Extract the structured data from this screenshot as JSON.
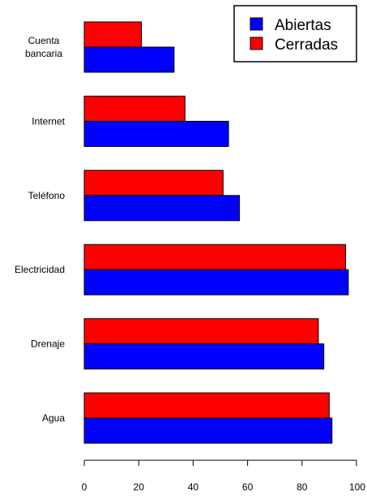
{
  "chart_data": {
    "type": "bar",
    "orientation": "horizontal",
    "categories": [
      "Cuenta\nbancaria",
      "Internet",
      "Teléfono",
      "Electricidad",
      "Drenaje",
      "Agua"
    ],
    "series": [
      {
        "name": "Abiertas",
        "color": "#0000ff",
        "values": [
          33,
          53,
          57,
          97,
          88,
          91
        ]
      },
      {
        "name": "Cerradas",
        "color": "#ff0000",
        "values": [
          21,
          37,
          51,
          96,
          86,
          90
        ]
      }
    ],
    "x_ticks": [
      0,
      20,
      40,
      60,
      80,
      100
    ],
    "xlim": [
      0,
      100
    ],
    "legend_position": "top-right",
    "grid": false
  }
}
